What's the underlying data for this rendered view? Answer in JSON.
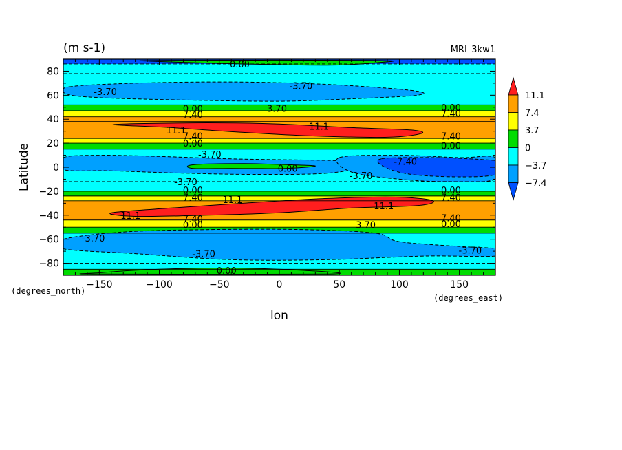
{
  "chart_data": {
    "type": "heatmap",
    "title_units": "(m s-1)",
    "model": "MRI_3kw1",
    "xlabel": "lon",
    "ylabel": "Latitude",
    "x_unit_note": "(degrees_east)",
    "y_unit_note": "(degrees_north)",
    "xlim": [
      -180,
      180
    ],
    "ylim": [
      -90,
      90
    ],
    "x_ticks": [
      -150,
      -100,
      -50,
      0,
      50,
      100,
      150
    ],
    "y_ticks": [
      80,
      60,
      40,
      20,
      0,
      -20,
      -40,
      -60,
      -80
    ],
    "colorbar": {
      "labels": [
        "11.1",
        "7.4",
        "3.7",
        "0",
        "−3.7",
        "−7.4"
      ],
      "levels": [
        -7.4,
        -3.7,
        0,
        3.7,
        7.4,
        11.1
      ],
      "colors": [
        "#0050ff",
        "#00a0ff",
        "#00ffff",
        "#00dc00",
        "#ffff00",
        "#ffa000",
        "#ff1e1e"
      ]
    },
    "bands": [
      {
        "lat": [
          86,
          90
        ],
        "level": 0
      },
      {
        "lat": [
          78,
          86
        ],
        "level": 2
      },
      {
        "lat": [
          52,
          78
        ],
        "level": 2
      },
      {
        "lat": [
          47,
          52
        ],
        "level": 3
      },
      {
        "lat": [
          42,
          47
        ],
        "level": 4
      },
      {
        "lat": [
          38,
          42
        ],
        "level": 5
      },
      {
        "lat": [
          24,
          38
        ],
        "level": 5
      },
      {
        "lat": [
          20,
          24
        ],
        "level": 4
      },
      {
        "lat": [
          15,
          20
        ],
        "level": 3
      },
      {
        "lat": [
          -12,
          15
        ],
        "level": 2
      },
      {
        "lat": [
          -20,
          -12
        ],
        "level": 2
      },
      {
        "lat": [
          -24,
          -20
        ],
        "level": 3
      },
      {
        "lat": [
          -28,
          -24
        ],
        "level": 4
      },
      {
        "lat": [
          -44,
          -28
        ],
        "level": 5
      },
      {
        "lat": [
          -50,
          -44
        ],
        "level": 4
      },
      {
        "lat": [
          -55,
          -50
        ],
        "level": 3
      },
      {
        "lat": [
          -80,
          -55
        ],
        "level": 2
      },
      {
        "lat": [
          -85,
          -80
        ],
        "level": 2
      },
      {
        "lat": [
          -90,
          -85
        ],
        "level": 3
      }
    ],
    "blobs": [
      {
        "level": 1,
        "pts": [
          [
            -175,
            67
          ],
          [
            -120,
            70
          ],
          [
            -40,
            71
          ],
          [
            40,
            69
          ],
          [
            110,
            64
          ],
          [
            115,
            60
          ],
          [
            60,
            57
          ],
          [
            0,
            55
          ],
          [
            -80,
            56
          ],
          [
            -150,
            58
          ],
          [
            -177,
            61
          ]
        ]
      },
      {
        "level": 6,
        "pts": [
          [
            -130,
            36
          ],
          [
            -60,
            37
          ],
          [
            0,
            36
          ],
          [
            60,
            33
          ],
          [
            110,
            31
          ],
          [
            118,
            28
          ],
          [
            90,
            25
          ],
          [
            30,
            26
          ],
          [
            -30,
            29
          ],
          [
            -90,
            33
          ],
          [
            -133,
            35
          ]
        ]
      },
      {
        "level": 1,
        "pts": [
          [
            -180,
            8
          ],
          [
            -150,
            10
          ],
          [
            -100,
            9
          ],
          [
            -40,
            7
          ],
          [
            20,
            6
          ],
          [
            60,
            5
          ],
          [
            80,
            2
          ],
          [
            40,
            -5
          ],
          [
            -20,
            -6
          ],
          [
            -80,
            -5
          ],
          [
            -140,
            -3
          ],
          [
            -180,
            -2
          ]
        ]
      },
      {
        "level": 3,
        "pts": [
          [
            -72,
            2
          ],
          [
            -30,
            3
          ],
          [
            10,
            2
          ],
          [
            30,
            1
          ],
          [
            5,
            -1
          ],
          [
            -40,
            -1
          ],
          [
            -72,
            -1
          ]
        ]
      },
      {
        "level": 1,
        "pts": [
          [
            50,
            8
          ],
          [
            100,
            10
          ],
          [
            150,
            8
          ],
          [
            180,
            8
          ],
          [
            180,
            -10
          ],
          [
            140,
            -12
          ],
          [
            100,
            -10
          ],
          [
            60,
            -4
          ]
        ]
      },
      {
        "level": 0,
        "pts": [
          [
            85,
            7
          ],
          [
            130,
            8
          ],
          [
            175,
            6
          ],
          [
            180,
            4
          ],
          [
            180,
            -6
          ],
          [
            150,
            -8
          ],
          [
            110,
            -6
          ],
          [
            88,
            0
          ]
        ]
      },
      {
        "level": 6,
        "pts": [
          [
            -140,
            -38
          ],
          [
            -90,
            -34
          ],
          [
            -30,
            -30
          ],
          [
            40,
            -26
          ],
          [
            100,
            -25
          ],
          [
            128,
            -28
          ],
          [
            115,
            -32
          ],
          [
            60,
            -34
          ],
          [
            0,
            -38
          ],
          [
            -60,
            -40
          ],
          [
            -120,
            -41
          ]
        ]
      },
      {
        "level": 1,
        "pts": [
          [
            -180,
            -60
          ],
          [
            -130,
            -54
          ],
          [
            -60,
            -52
          ],
          [
            20,
            -52
          ],
          [
            80,
            -55
          ],
          [
            100,
            -62
          ],
          [
            150,
            -66
          ],
          [
            180,
            -68
          ],
          [
            180,
            -74
          ],
          [
            120,
            -74
          ],
          [
            40,
            -77
          ],
          [
            -40,
            -77
          ],
          [
            -120,
            -72
          ],
          [
            -180,
            -68
          ]
        ]
      },
      {
        "level": 3,
        "pts": [
          [
            -150,
            -88
          ],
          [
            -100,
            -85
          ],
          [
            -40,
            -84
          ],
          [
            20,
            -86
          ],
          [
            40,
            -89
          ],
          [
            -150,
            -89
          ]
        ]
      },
      {
        "level": 3,
        "pts": [
          [
            -100,
            88
          ],
          [
            -30,
            86
          ],
          [
            40,
            85
          ],
          [
            80,
            87
          ],
          [
            80,
            89
          ],
          [
            -100,
            89
          ]
        ]
      }
    ],
    "contour_labels": [
      {
        "text": "0.00",
        "lon": -33,
        "lat": 86
      },
      {
        "text": "-3.70",
        "lon": -145,
        "lat": 63
      },
      {
        "text": "-3.70",
        "lon": 18,
        "lat": 68
      },
      {
        "text": "0.00",
        "lon": -72,
        "lat": 49
      },
      {
        "text": "7.40",
        "lon": -72,
        "lat": 44
      },
      {
        "text": "3.70",
        "lon": -2,
        "lat": 49
      },
      {
        "text": "0.00",
        "lon": 143,
        "lat": 50
      },
      {
        "text": "7.40",
        "lon": 143,
        "lat": 45
      },
      {
        "text": "11.1",
        "lon": -86,
        "lat": 31
      },
      {
        "text": "7.40",
        "lon": -72,
        "lat": 26
      },
      {
        "text": "0.00",
        "lon": -72,
        "lat": 20
      },
      {
        "text": "11.1",
        "lon": 33,
        "lat": 34
      },
      {
        "text": "7.40",
        "lon": 143,
        "lat": 26
      },
      {
        "text": "0.00",
        "lon": 143,
        "lat": 18
      },
      {
        "text": "-3.70",
        "lon": -58,
        "lat": 11
      },
      {
        "text": "0.00",
        "lon": 7,
        "lat": -1
      },
      {
        "text": "-7.40",
        "lon": 105,
        "lat": 5
      },
      {
        "text": "-3.70",
        "lon": 68,
        "lat": -7
      },
      {
        "text": "-3.70",
        "lon": -78,
        "lat": -12
      },
      {
        "text": "0.00",
        "lon": -72,
        "lat": -19
      },
      {
        "text": "7.40",
        "lon": -72,
        "lat": -25
      },
      {
        "text": "0.00",
        "lon": 143,
        "lat": -19
      },
      {
        "text": "7.40",
        "lon": 143,
        "lat": -25
      },
      {
        "text": "11.1",
        "lon": -39,
        "lat": -27
      },
      {
        "text": "11.1",
        "lon": 87,
        "lat": -32
      },
      {
        "text": "11.1",
        "lon": -124,
        "lat": -40
      },
      {
        "text": "7.40",
        "lon": -72,
        "lat": -43
      },
      {
        "text": "0.00",
        "lon": -72,
        "lat": -48
      },
      {
        "text": "3.70",
        "lon": 72,
        "lat": -48
      },
      {
        "text": "7.40",
        "lon": 143,
        "lat": -42
      },
      {
        "text": "0.00",
        "lon": 143,
        "lat": -47
      },
      {
        "text": "-3.70",
        "lon": -155,
        "lat": -59
      },
      {
        "text": "-3.70",
        "lon": -63,
        "lat": -72
      },
      {
        "text": "-3.70",
        "lon": 159,
        "lat": -69
      },
      {
        "text": "0.00",
        "lon": -44,
        "lat": -86
      }
    ]
  }
}
